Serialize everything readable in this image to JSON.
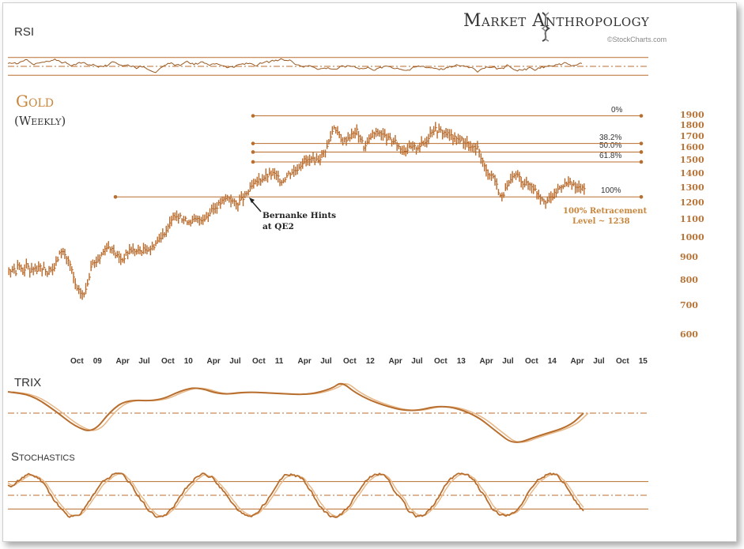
{
  "branding": {
    "title": "Market Anthropology",
    "credit": "©StockCharts.com"
  },
  "panels": {
    "rsi": "RSI",
    "trix": "TRIX",
    "stochastics": "Stochastics"
  },
  "colors": {
    "accent": "#c8863c",
    "line": "#b86e2e",
    "signal": "#e8b98a"
  },
  "icons": {
    "logo": "dna-helix-icon"
  },
  "chart_data": {
    "type": "line",
    "title": "Gold",
    "subtitle": "(Weekly)",
    "x_tick_labels": [
      "Oct",
      "09",
      "Apr",
      "Jul",
      "Oct",
      "10",
      "Apr",
      "Jul",
      "Oct",
      "11",
      "Apr",
      "Jul",
      "Oct",
      "12",
      "Apr",
      "Jul",
      "Oct",
      "13",
      "Apr",
      "Jul",
      "Oct",
      "14",
      "Apr",
      "Jul",
      "Oct",
      "15"
    ],
    "y_tick_labels": [
      "1900",
      "1800",
      "1700",
      "1600",
      "1500",
      "1400",
      "1300",
      "1200",
      "1100",
      "1000",
      "900",
      "800",
      "700",
      "600"
    ],
    "y_scale": "log",
    "ylim": [
      600,
      1900
    ],
    "fib_levels": [
      {
        "label": "0%",
        "value": 1895
      },
      {
        "label": "38.2%",
        "value": 1639
      },
      {
        "label": "50.0%",
        "value": 1567
      },
      {
        "label": "61.8%",
        "value": 1488
      },
      {
        "label": "100%",
        "value": 1238
      }
    ],
    "annotations": [
      {
        "lines": [
          "Bernanke Hints",
          "at QE2"
        ]
      },
      {
        "lines": [
          "100% Retracement",
          "Level ~ 1238"
        ]
      }
    ],
    "price_series": {
      "name": "Gold",
      "x": [
        "2008-07",
        "2008-08",
        "2008-09",
        "2008-10",
        "2008-11",
        "2008-12",
        "2009-01",
        "2009-02",
        "2009-03",
        "2009-04",
        "2009-05",
        "2009-06",
        "2009-07",
        "2009-08",
        "2009-09",
        "2009-10",
        "2009-11",
        "2009-12",
        "2010-01",
        "2010-02",
        "2010-03",
        "2010-04",
        "2010-05",
        "2010-06",
        "2010-07",
        "2010-08",
        "2010-09",
        "2010-10",
        "2010-11",
        "2010-12",
        "2011-01",
        "2011-02",
        "2011-03",
        "2011-04",
        "2011-05",
        "2011-06",
        "2011-07",
        "2011-08",
        "2011-09",
        "2011-10",
        "2011-11",
        "2011-12",
        "2012-01",
        "2012-02",
        "2012-03",
        "2012-04",
        "2012-05",
        "2012-06",
        "2012-07",
        "2012-08",
        "2012-09",
        "2012-10",
        "2012-11",
        "2012-12",
        "2013-01",
        "2013-02",
        "2013-03",
        "2013-04",
        "2013-05",
        "2013-06",
        "2013-07",
        "2013-08",
        "2013-09",
        "2013-10",
        "2013-11",
        "2013-12",
        "2014-01",
        "2014-02",
        "2014-03",
        "2014-04",
        "2014-05"
      ],
      "values": [
        850,
        940,
        880,
        760,
        740,
        860,
        900,
        960,
        920,
        890,
        940,
        930,
        940,
        950,
        1000,
        1050,
        1130,
        1100,
        1090,
        1100,
        1110,
        1160,
        1200,
        1240,
        1190,
        1230,
        1300,
        1350,
        1380,
        1400,
        1340,
        1400,
        1430,
        1500,
        1500,
        1510,
        1600,
        1800,
        1650,
        1700,
        1750,
        1600,
        1720,
        1740,
        1680,
        1650,
        1580,
        1600,
        1610,
        1650,
        1770,
        1750,
        1720,
        1680,
        1670,
        1600,
        1590,
        1420,
        1380,
        1230,
        1320,
        1400,
        1330,
        1320,
        1250,
        1210,
        1250,
        1320,
        1330,
        1300,
        1290
      ]
    },
    "rsi": {
      "ylim": [
        0,
        100
      ],
      "levels": [
        70,
        50,
        30
      ]
    },
    "trix": {
      "baseline": 0
    },
    "stochastics": {
      "ylim": [
        0,
        100
      ],
      "levels": [
        80,
        50,
        20
      ]
    }
  }
}
